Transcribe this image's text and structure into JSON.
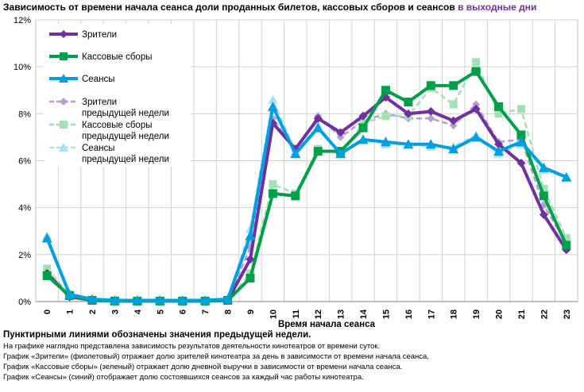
{
  "title": {
    "main": "Зависимость от времени начала сеанса доли проданных билетов, кассовых сборов и сеансов",
    "highlight": "в выходные дни"
  },
  "chart_data": {
    "type": "line",
    "xlabel": "Время начала сеанса",
    "ylabel": "",
    "categories": [
      "0",
      "1",
      "2",
      "3",
      "4",
      "5",
      "6",
      "7",
      "8",
      "9",
      "10",
      "11",
      "12",
      "13",
      "14",
      "15",
      "16",
      "17",
      "18",
      "19",
      "20",
      "21",
      "22",
      "23"
    ],
    "ylim": [
      0,
      12
    ],
    "yticks": [
      0,
      2,
      4,
      6,
      8,
      10,
      12
    ],
    "ytick_labels": [
      "0%",
      "2%",
      "4%",
      "6%",
      "8%",
      "10%",
      "12%"
    ],
    "legend_position": "top-left",
    "series": [
      {
        "name": "Зрители",
        "color": "#7030a0",
        "style": "solid",
        "marker": "diamond",
        "values": [
          1.2,
          0.2,
          0.05,
          0.02,
          0.02,
          0.02,
          0.02,
          0.02,
          0.05,
          1.8,
          7.6,
          6.5,
          7.8,
          7.2,
          7.9,
          8.7,
          8.0,
          8.1,
          7.7,
          8.2,
          6.7,
          5.9,
          3.7,
          2.2
        ]
      },
      {
        "name": "Кассовые сборы",
        "color": "#00a04a",
        "style": "solid",
        "marker": "square",
        "values": [
          1.1,
          0.25,
          0.05,
          0.02,
          0.02,
          0.02,
          0.02,
          0.02,
          0.05,
          1.0,
          4.6,
          4.5,
          6.4,
          6.4,
          7.4,
          9.0,
          8.5,
          9.2,
          9.2,
          9.8,
          8.3,
          7.1,
          4.5,
          2.4
        ]
      },
      {
        "name": "Сеансы",
        "color": "#00a0e0",
        "style": "solid",
        "marker": "triangle",
        "values": [
          2.7,
          0.3,
          0.1,
          0.05,
          0.05,
          0.05,
          0.05,
          0.05,
          0.1,
          2.8,
          8.3,
          6.3,
          7.4,
          6.3,
          6.9,
          6.8,
          6.7,
          6.7,
          6.5,
          7.0,
          6.4,
          6.8,
          5.7,
          5.3
        ]
      },
      {
        "name": "Зрители предыдущей недели",
        "color": "#b29fd6",
        "style": "dashed",
        "marker": "diamond",
        "values": [
          1.3,
          0.2,
          0.05,
          0.02,
          0.02,
          0.02,
          0.02,
          0.02,
          0.05,
          2.3,
          7.8,
          6.4,
          7.9,
          7.0,
          7.7,
          8.0,
          7.8,
          7.8,
          7.5,
          8.4,
          6.8,
          6.9,
          4.1,
          2.5
        ]
      },
      {
        "name": "Кассовые сборы предыдущей недели",
        "color": "#a3e0b3",
        "style": "dashed",
        "marker": "square",
        "values": [
          1.4,
          0.3,
          0.05,
          0.02,
          0.02,
          0.02,
          0.02,
          0.02,
          0.05,
          1.2,
          5.0,
          4.6,
          6.5,
          6.3,
          7.6,
          7.9,
          7.9,
          9.1,
          8.4,
          10.2,
          8.0,
          8.2,
          4.8,
          2.7
        ]
      },
      {
        "name": "Сеансы предыдущей недели",
        "color": "#a9e0f3",
        "style": "dashed",
        "marker": "triangle",
        "values": [
          2.8,
          0.35,
          0.1,
          0.05,
          0.05,
          0.05,
          0.05,
          0.05,
          0.1,
          3.1,
          8.6,
          6.4,
          7.5,
          6.3,
          6.9,
          6.7,
          6.7,
          6.6,
          6.6,
          7.1,
          6.3,
          6.7,
          5.6,
          5.3
        ]
      }
    ],
    "legend_labels": [
      [
        "Зрители"
      ],
      [
        "Кассовые сборы"
      ],
      [
        "Сеансы"
      ],
      [
        "Зрители",
        "предыдущей недели"
      ],
      [
        "Кассовые сборы",
        "предыдущей недели"
      ],
      [
        "Сеансы",
        "предыдущей недели"
      ]
    ]
  },
  "notes": {
    "heading": "Пунктирными линиями обозначены значения предыдущей недели.",
    "lines": [
      "На графике наглядно представлена зависимость результатов деятельности кинотеатров от времени суток.",
      "График «Зрители» (фиолетовый) отражает долю зрителей кинотеатра за день в зависимости от времени начала сеанса.",
      "График «Кассовые сборы» (зеленый) отражает долю дневной выручки в зависимости от времени начала сеанса.",
      "График «Сеансы» (синий) отображает долю состоявшихся сеансов за каждый час работы кинотеатра."
    ]
  }
}
